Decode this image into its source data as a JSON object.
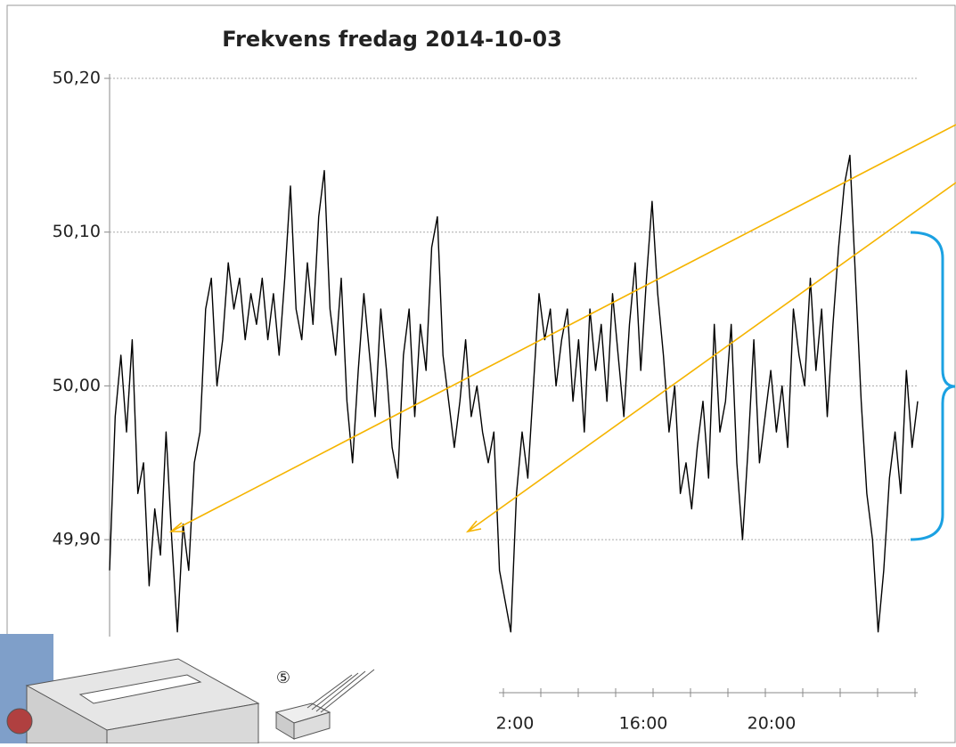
{
  "chart_data": {
    "type": "line",
    "title": "Frekvens fredag 2014-10-03",
    "color": "#000000",
    "ylim": [
      49.83,
      50.2
    ],
    "yticks": [
      {
        "value": 49.9,
        "label": "49,90"
      },
      {
        "value": 50.0,
        "label": "50,00"
      },
      {
        "value": 50.1,
        "label": "50,10"
      },
      {
        "value": 50.2,
        "label": "50,20"
      }
    ],
    "grid": true,
    "values": [
      49.88,
      49.98,
      50.02,
      49.97,
      50.03,
      49.93,
      49.95,
      49.87,
      49.92,
      49.89,
      49.97,
      49.9,
      49.84,
      49.91,
      49.88,
      49.95,
      49.97,
      50.05,
      50.07,
      50.0,
      50.03,
      50.08,
      50.05,
      50.07,
      50.03,
      50.06,
      50.04,
      50.07,
      50.03,
      50.06,
      50.02,
      50.07,
      50.13,
      50.05,
      50.03,
      50.08,
      50.04,
      50.11,
      50.14,
      50.05,
      50.02,
      50.07,
      49.99,
      49.95,
      50.01,
      50.06,
      50.02,
      49.98,
      50.05,
      50.01,
      49.96,
      49.94,
      50.02,
      50.05,
      49.98,
      50.04,
      50.01,
      50.09,
      50.11,
      50.02,
      49.99,
      49.96,
      49.99,
      50.03,
      49.98,
      50.0,
      49.97,
      49.95,
      49.97,
      49.88,
      49.86,
      49.84,
      49.93,
      49.97,
      49.94,
      50.0,
      50.06,
      50.03,
      50.05,
      50.0,
      50.03,
      50.05,
      49.99,
      50.03,
      49.97,
      50.05,
      50.01,
      50.04,
      49.99,
      50.06,
      50.02,
      49.98,
      50.04,
      50.08,
      50.01,
      50.07,
      50.12,
      50.06,
      50.02,
      49.97,
      50.0,
      49.93,
      49.95,
      49.92,
      49.96,
      49.99,
      49.94,
      50.04,
      49.97,
      49.99,
      50.04,
      49.95,
      49.9,
      49.96,
      50.03,
      49.95,
      49.98,
      50.01,
      49.97,
      50.0,
      49.96,
      50.05,
      50.02,
      50.0,
      50.07,
      50.01,
      50.05,
      49.98,
      50.04,
      50.09,
      50.13,
      50.15,
      50.07,
      49.99,
      49.93,
      49.9,
      49.84,
      49.88,
      49.94,
      49.97,
      49.93,
      50.01,
      49.96,
      49.99
    ],
    "lower_axis": {
      "xtick_labels": [
        "2:00",
        "16:00",
        "20:00"
      ]
    },
    "illustration_label": "⑤"
  }
}
